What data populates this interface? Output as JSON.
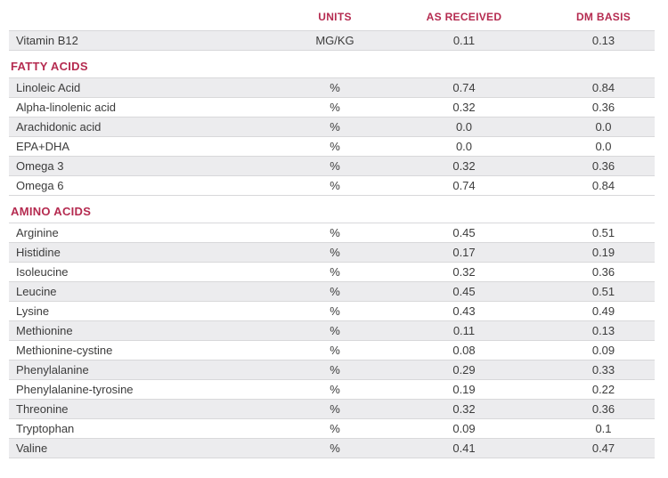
{
  "colors": {
    "accent": "#b52b50",
    "shaded_row_bg": "#ececee",
    "row_border": "#d8d8da",
    "text": "#3c3c3c"
  },
  "table": {
    "columns": [
      "",
      "UNITS",
      "AS RECEIVED",
      "DM BASIS"
    ],
    "sections": [
      {
        "heading": "",
        "rows": [
          {
            "label": "Vitamin B12",
            "units": "MG/KG",
            "as_received": "0.11",
            "dm_basis": "0.13",
            "shaded": true
          }
        ]
      },
      {
        "heading": "FATTY ACIDS",
        "rows": [
          {
            "label": "Linoleic Acid",
            "units": "%",
            "as_received": "0.74",
            "dm_basis": "0.84",
            "shaded": true
          },
          {
            "label": "Alpha-linolenic acid",
            "units": "%",
            "as_received": "0.32",
            "dm_basis": "0.36",
            "shaded": false
          },
          {
            "label": "Arachidonic acid",
            "units": "%",
            "as_received": "0.0",
            "dm_basis": "0.0",
            "shaded": true
          },
          {
            "label": "EPA+DHA",
            "units": "%",
            "as_received": "0.0",
            "dm_basis": "0.0",
            "shaded": false
          },
          {
            "label": "Omega 3",
            "units": "%",
            "as_received": "0.32",
            "dm_basis": "0.36",
            "shaded": true
          },
          {
            "label": "Omega 6",
            "units": "%",
            "as_received": "0.74",
            "dm_basis": "0.84",
            "shaded": false
          }
        ]
      },
      {
        "heading": "AMINO ACIDS",
        "rows": [
          {
            "label": "Arginine",
            "units": "%",
            "as_received": "0.45",
            "dm_basis": "0.51",
            "shaded": false
          },
          {
            "label": "Histidine",
            "units": "%",
            "as_received": "0.17",
            "dm_basis": "0.19",
            "shaded": true
          },
          {
            "label": "Isoleucine",
            "units": "%",
            "as_received": "0.32",
            "dm_basis": "0.36",
            "shaded": false
          },
          {
            "label": "Leucine",
            "units": "%",
            "as_received": "0.45",
            "dm_basis": "0.51",
            "shaded": true
          },
          {
            "label": "Lysine",
            "units": "%",
            "as_received": "0.43",
            "dm_basis": "0.49",
            "shaded": false
          },
          {
            "label": "Methionine",
            "units": "%",
            "as_received": "0.11",
            "dm_basis": "0.13",
            "shaded": true
          },
          {
            "label": "Methionine-cystine",
            "units": "%",
            "as_received": "0.08",
            "dm_basis": "0.09",
            "shaded": false
          },
          {
            "label": "Phenylalanine",
            "units": "%",
            "as_received": "0.29",
            "dm_basis": "0.33",
            "shaded": true
          },
          {
            "label": "Phenylalanine-tyrosine",
            "units": "%",
            "as_received": "0.19",
            "dm_basis": "0.22",
            "shaded": false
          },
          {
            "label": "Threonine",
            "units": "%",
            "as_received": "0.32",
            "dm_basis": "0.36",
            "shaded": true
          },
          {
            "label": "Tryptophan",
            "units": "%",
            "as_received": "0.09",
            "dm_basis": "0.1",
            "shaded": false
          },
          {
            "label": "Valine",
            "units": "%",
            "as_received": "0.41",
            "dm_basis": "0.47",
            "shaded": true
          }
        ]
      }
    ]
  }
}
